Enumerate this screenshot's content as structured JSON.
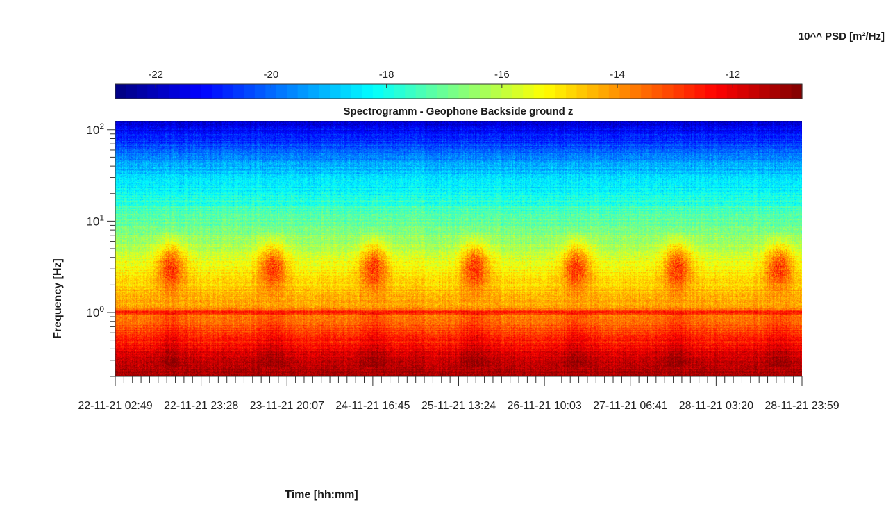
{
  "chart_data": {
    "type": "heatmap",
    "title": "Spectrogramm - Geophone Backside ground z",
    "xlabel": "Time [hh:mm]",
    "ylabel": "Frequency [Hz]",
    "y_scale": "log",
    "ylim": [
      0.2,
      125
    ],
    "y_ticks": [
      {
        "value": 1,
        "base": "10",
        "exp": "0"
      },
      {
        "value": 10,
        "base": "10",
        "exp": "1"
      },
      {
        "value": 100,
        "base": "10",
        "exp": "2"
      }
    ],
    "x_ticks": [
      "22-11-21  02:49",
      "22-11-21  23:28",
      "23-11-21  20:07",
      "24-11-21  16:45",
      "25-11-21  13:24",
      "26-11-21  10:03",
      "27-11-21  06:41",
      "28-11-21  03:20",
      "28-11-21  23:59"
    ],
    "x_minor_per_major": 10,
    "colorbar": {
      "label": "10^^ PSD [m²/Hz]",
      "colormap": "jet",
      "range": [
        -22.7,
        -10.8
      ],
      "ticks": [
        -22,
        -20,
        -18,
        -16,
        -14,
        -12
      ],
      "tick_labels": [
        "-22",
        "-20",
        "-18",
        "-16",
        "-14",
        "-12"
      ]
    },
    "features": {
      "background_psd_low_freq": -12,
      "background_psd_high_freq": -21,
      "daily_bursts_band_hz": [
        1.5,
        6
      ],
      "daily_burst_peak_psd": -13,
      "line_at_hz": 1.0
    }
  }
}
